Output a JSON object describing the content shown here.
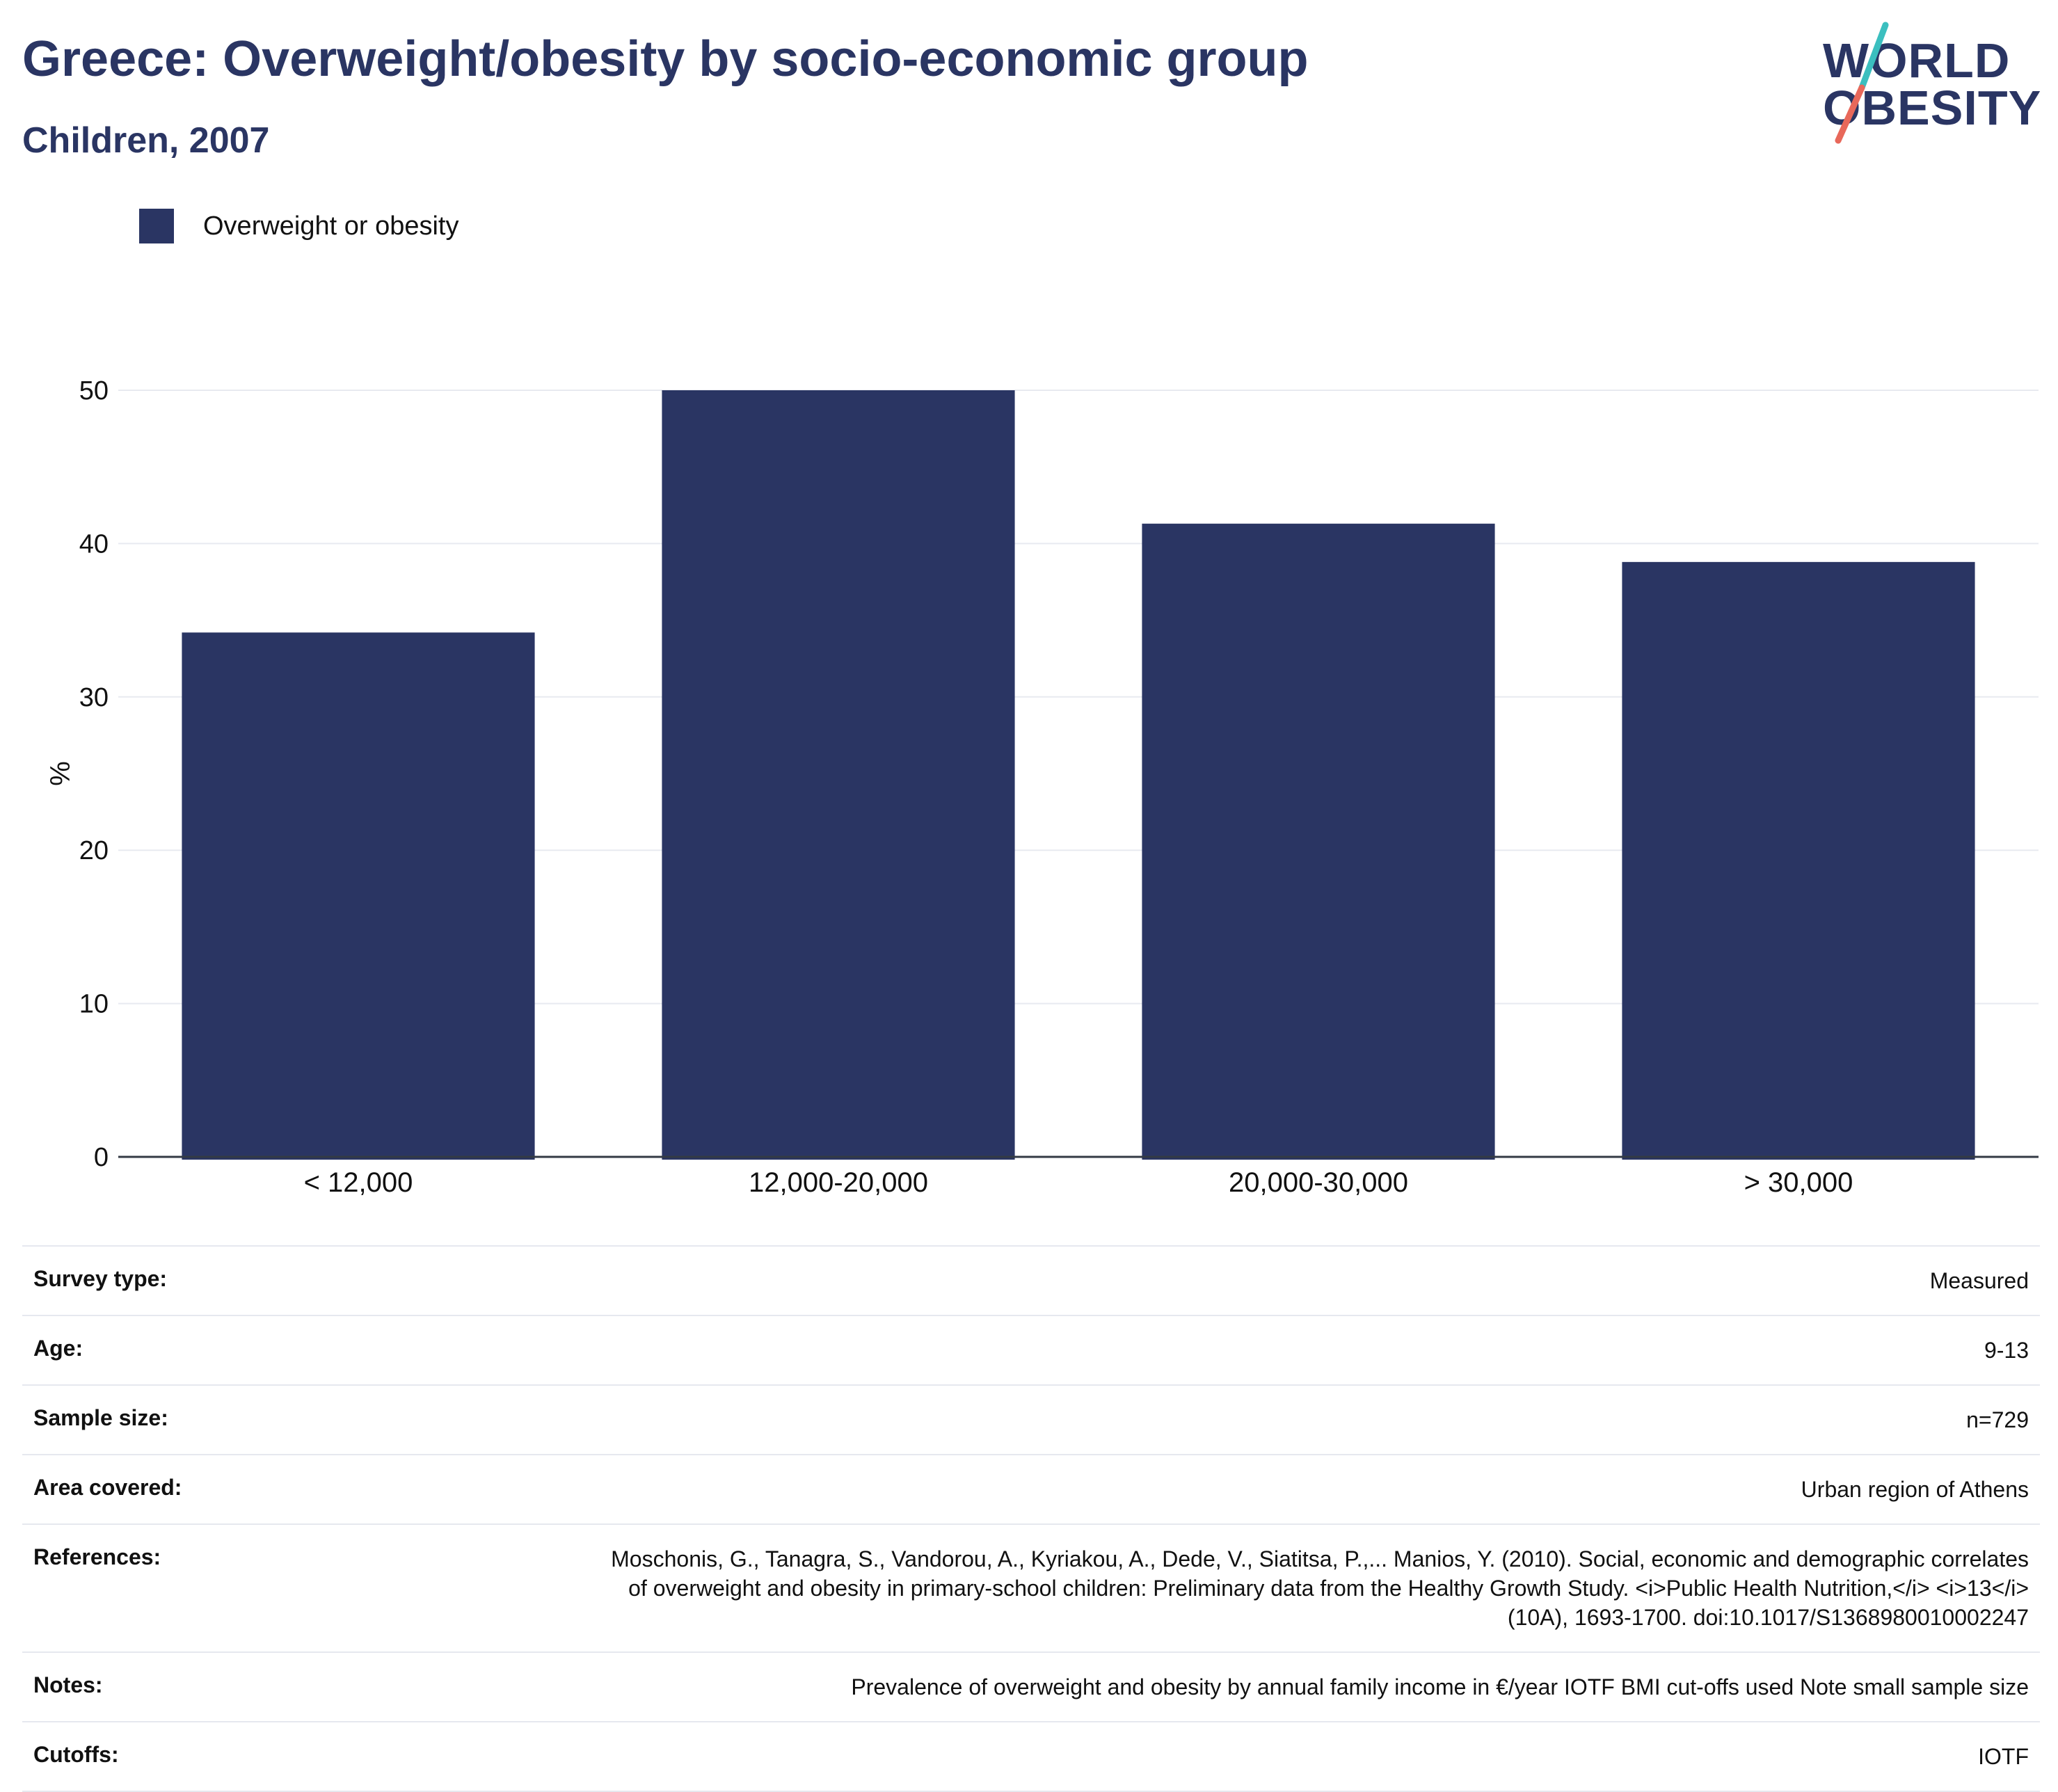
{
  "header": {
    "title": "Greece: Overweight/obesity by socio-economic group",
    "subtitle": "Children, 2007"
  },
  "logo": {
    "line1": "WORLD",
    "line2": "OBESITY",
    "colors": {
      "text": "#2a3563",
      "slash_top": "#3bbfbf",
      "slash_bottom": "#e8685a"
    }
  },
  "legend": {
    "label": "Overweight or obesity",
    "color": "#2a3563"
  },
  "chart_data": {
    "type": "bar",
    "categories": [
      "< 12,000",
      "12,000-20,000",
      "20,000-30,000",
      "> 30,000"
    ],
    "series": [
      {
        "name": "Overweight or obesity",
        "values": [
          34.2,
          50.0,
          41.3,
          38.8
        ],
        "color": "#2a3563"
      }
    ],
    "xlabel": "",
    "ylabel": "%",
    "ylim": [
      0,
      50
    ],
    "yticks": [
      0,
      10,
      20,
      30,
      40,
      50
    ],
    "grid": true,
    "legend_position": "top-left"
  },
  "info": [
    {
      "label": "Survey type:",
      "value": "Measured"
    },
    {
      "label": "Age:",
      "value": "9-13"
    },
    {
      "label": "Sample size:",
      "value": "n=729"
    },
    {
      "label": "Area covered:",
      "value": "Urban region of Athens"
    },
    {
      "label": "References:",
      "value": "Moschonis, G., Tanagra, S., Vandorou, A., Kyriakou, A., Dede, V., Siatitsa, P.,... Manios, Y. (2010). Social, economic and demographic correlates of overweight and obesity in primary-school children: Preliminary data from the Healthy Growth Study. <i>Public Health Nutrition,</i> <i>13</i>(10A), 1693-1700. doi:10.1017/S1368980010002247"
    },
    {
      "label": "Notes:",
      "value": "Prevalence of overweight and obesity by annual family income in €/year IOTF BMI cut-offs used Note small sample size"
    },
    {
      "label": "Cutoffs:",
      "value": "IOTF"
    }
  ]
}
